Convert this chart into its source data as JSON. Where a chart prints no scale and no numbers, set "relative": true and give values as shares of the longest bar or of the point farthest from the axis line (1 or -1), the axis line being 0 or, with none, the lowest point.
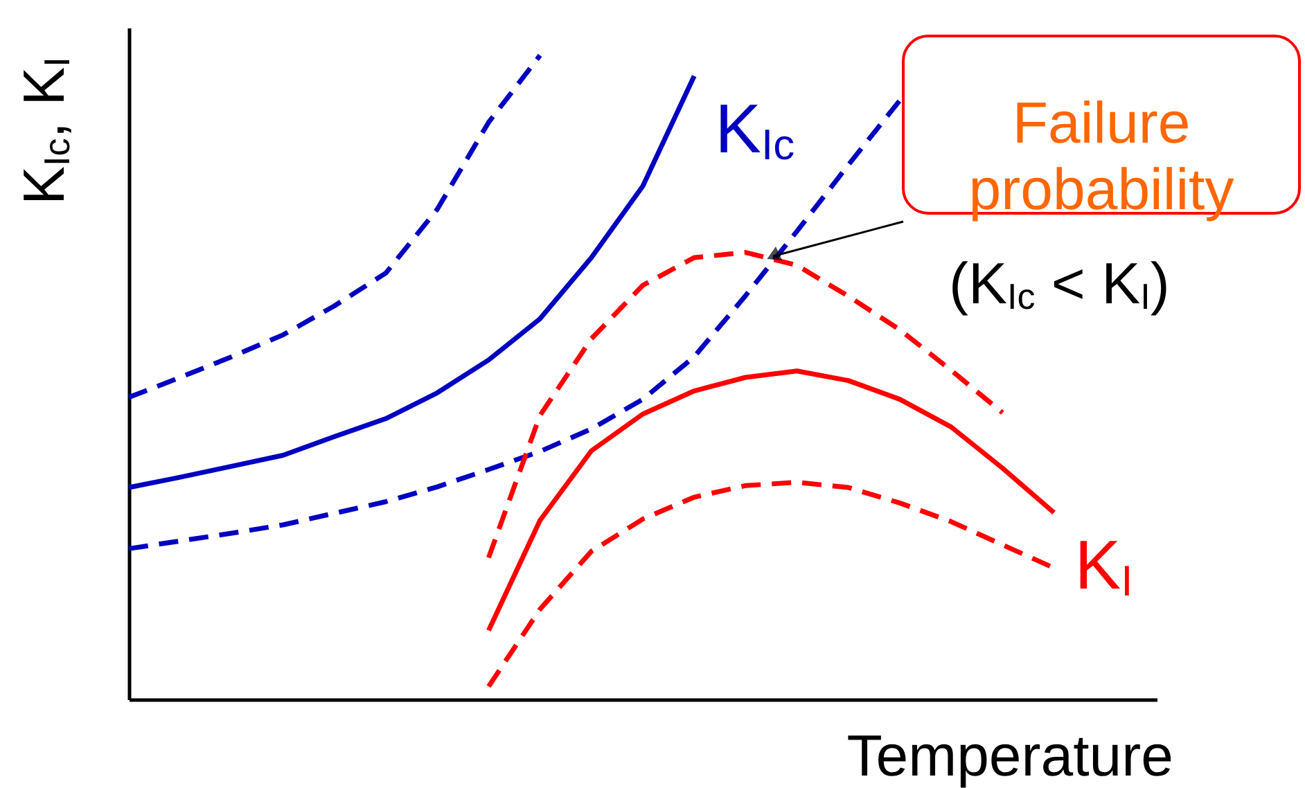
{
  "chart_data": {
    "type": "line",
    "relative": true,
    "tick_labels": false,
    "xlabel": "Temperature",
    "ylabel": "K$_{Ic}$, K$_{I}$",
    "categories": [
      null,
      null,
      null,
      null,
      null,
      null,
      null,
      null,
      null,
      null,
      null,
      null,
      null,
      null,
      null,
      null,
      null,
      null,
      null,
      null,
      null
    ],
    "series": [
      {
        "name": "K$_{Ic}$",
        "color": "#0000c0",
        "line_style": "solid",
        "values": [
          0.329,
          0.345,
          0.362,
          0.379,
          0.408,
          0.436,
          0.476,
          0.527,
          0.591,
          0.686,
          0.797,
          0.968,
          null,
          null,
          null,
          null,
          null,
          null,
          null,
          null,
          null
        ]
      },
      {
        "color": "#0000c0",
        "line_style": "dashed",
        "values": [
          0.469,
          0.5,
          0.532,
          0.566,
          0.611,
          0.662,
          0.761,
          0.896,
          1.0,
          null,
          null,
          null,
          null,
          null,
          null,
          null,
          null,
          null,
          null,
          null,
          null
        ]
      },
      {
        "color": "#0000c0",
        "line_style": "dashed",
        "values": [
          0.234,
          0.246,
          0.258,
          0.271,
          0.289,
          0.307,
          0.33,
          0.357,
          0.385,
          0.42,
          0.466,
          0.532,
          0.627,
          0.727,
          0.83,
          0.93,
          null,
          null,
          null,
          null,
          null
        ]
      },
      {
        "name": "K$_{I}$",
        "color": "#ff0000",
        "line_style": "solid",
        "values": [
          null,
          null,
          null,
          null,
          null,
          null,
          null,
          0.107,
          0.278,
          0.386,
          0.443,
          0.479,
          0.5,
          0.51,
          0.495,
          0.466,
          0.423,
          0.359,
          0.29,
          null,
          null
        ]
      },
      {
        "color": "#ff0000",
        "line_style": "dashed",
        "values": [
          null,
          null,
          null,
          null,
          null,
          null,
          null,
          0.22,
          0.441,
          0.56,
          0.643,
          0.686,
          0.694,
          0.674,
          0.626,
          0.574,
          0.511,
          0.445,
          null,
          null,
          null
        ]
      },
      {
        "color": "#ff0000",
        "line_style": "dashed",
        "values": [
          null,
          null,
          null,
          null,
          null,
          null,
          null,
          0.02,
          0.14,
          0.23,
          0.28,
          0.314,
          0.332,
          0.337,
          0.329,
          0.305,
          0.276,
          0.24,
          0.204,
          null,
          null
        ]
      }
    ],
    "annotations": [
      "Failure\nprobability",
      "(K$_{Ic}$ < K$_{I}$)"
    ]
  }
}
